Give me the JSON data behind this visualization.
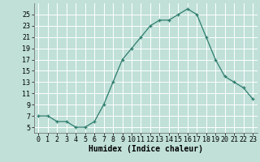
{
  "title": "",
  "xlabel": "Humidex (Indice chaleur)",
  "ylabel": "",
  "x": [
    0,
    1,
    2,
    3,
    4,
    5,
    6,
    7,
    8,
    9,
    10,
    11,
    12,
    13,
    14,
    15,
    16,
    17,
    18,
    19,
    20,
    21,
    22,
    23
  ],
  "y": [
    7,
    7,
    6,
    6,
    5,
    5,
    6,
    9,
    13,
    17,
    19,
    21,
    23,
    24,
    24,
    25,
    26,
    25,
    21,
    17,
    14,
    13,
    12,
    10
  ],
  "line_color": "#2e7d6e",
  "marker": "+",
  "bg_color": "#c0e0d8",
  "grid_color": "#ffffff",
  "ylim": [
    4,
    27
  ],
  "yticks": [
    5,
    7,
    9,
    11,
    13,
    15,
    17,
    19,
    21,
    23,
    25
  ],
  "xlim": [
    -0.5,
    23.5
  ],
  "xticks": [
    0,
    1,
    2,
    3,
    4,
    5,
    6,
    7,
    8,
    9,
    10,
    11,
    12,
    13,
    14,
    15,
    16,
    17,
    18,
    19,
    20,
    21,
    22,
    23
  ],
  "xlabel_fontsize": 7,
  "tick_fontsize": 6
}
